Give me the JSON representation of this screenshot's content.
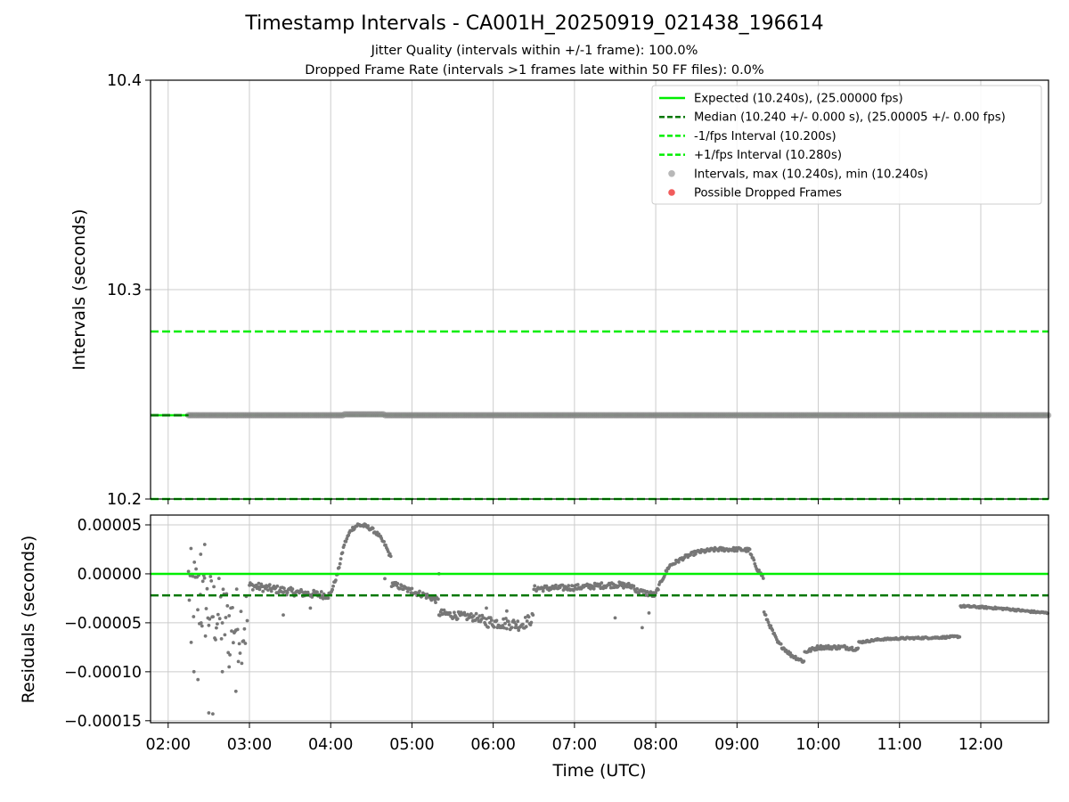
{
  "figure": {
    "title": "Timestamp Intervals - CA001H_20250919_021438_196614",
    "subtitle_jitter": "Jitter Quality (intervals within +/-1 frame): 100.0%",
    "subtitle_dropped": "Dropped Frame Rate (intervals >1 frames late within 50 FF files): 0.0%"
  },
  "colors": {
    "expected": "#00ee00",
    "median": "#007700",
    "points": "#777777",
    "dropped": "#ee3333",
    "grid": "#cccccc"
  },
  "chart_data": [
    {
      "type": "scatter",
      "panel": "intervals",
      "ylabel": "Intervals (seconds)",
      "ylim": [
        10.2,
        10.4
      ],
      "yticks": [
        "10.2",
        "10.3",
        "10.4"
      ],
      "xlim": [
        "01:47",
        "12:50"
      ],
      "grid": true,
      "legend_position": "top-right",
      "lines": [
        {
          "name": "Expected (10.240s), (25.00000 fps)",
          "y": 10.24,
          "style": "solid"
        },
        {
          "name": "Median (10.240 +/- 0.000 s), (25.00005 +/- 0.00 fps)",
          "y": 10.24,
          "style": "dashed"
        },
        {
          "name": "-1/fps Interval (10.200s)",
          "y": 10.2,
          "style": "dashed"
        },
        {
          "name": "+1/fps Interval (10.280s)",
          "y": 10.28,
          "style": "dashed"
        }
      ],
      "series": [
        {
          "name": "Intervals, max (10.240s), min (10.240s)",
          "x_range": [
            "02:15",
            "12:50"
          ],
          "y": 10.24
        },
        {
          "name": "Possible Dropped Frames",
          "points": []
        }
      ]
    },
    {
      "type": "scatter",
      "panel": "residuals",
      "xlabel": "Time (UTC)",
      "ylabel": "Residuals (seconds)",
      "ylim": [
        -0.000152,
        6e-05
      ],
      "yticks": [
        "0.00005",
        "0.00000",
        "−0.00005",
        "−0.00010",
        "−0.00015"
      ],
      "xticks": [
        "02:00",
        "03:00",
        "04:00",
        "05:00",
        "06:00",
        "07:00",
        "08:00",
        "09:00",
        "10:00",
        "11:00",
        "12:00"
      ],
      "grid": true,
      "lines": [
        {
          "name": "Expected",
          "y": 0.0,
          "style": "solid"
        },
        {
          "name": "Median",
          "y": -2.2e-05,
          "style": "dashed"
        }
      ],
      "series": [
        {
          "name": "Residuals",
          "segments": [
            {
              "x": [
                "02:15",
                "02:25",
                "02:35",
                "02:45",
                "02:55",
                "02:59"
              ],
              "y": [
                -1e-05,
                -3e-05,
                -4e-05,
                -5e-05,
                -5.2e-05,
                -4.5e-05
              ],
              "scatter": 4e-05
            },
            {
              "x": [
                "03:00",
                "03:20",
                "03:40",
                "04:00"
              ],
              "y": [
                -1.2e-05,
                -1.6e-05,
                -2e-05,
                -2.2e-05
              ],
              "scatter": 4e-06
            },
            {
              "x": [
                "04:00",
                "04:05",
                "04:10",
                "04:15",
                "04:20",
                "04:25",
                "04:30",
                "04:35",
                "04:40",
                "04:45"
              ],
              "y": [
                -2e-05,
                0.0,
                3e-05,
                4.5e-05,
                5e-05,
                4.9e-05,
                4.6e-05,
                4e-05,
                3e-05,
                1.5e-05
              ],
              "scatter": 2e-06
            },
            {
              "x": [
                "04:45",
                "05:00",
                "05:10",
                "05:20"
              ],
              "y": [
                -1e-05,
                -1.8e-05,
                -2.2e-05,
                -2.8e-05
              ],
              "scatter": 3e-06
            },
            {
              "x": [
                "05:20",
                "05:35",
                "05:50"
              ],
              "y": [
                -4e-05,
                -4.3e-05,
                -4.5e-05
              ],
              "scatter": 4e-06
            },
            {
              "x": [
                "05:50",
                "06:05",
                "06:20",
                "06:30"
              ],
              "y": [
                -4.8e-05,
                -5e-05,
                -5.2e-05,
                -4.5e-05
              ],
              "scatter": 6e-06
            },
            {
              "x": [
                "06:30",
                "07:00",
                "07:30",
                "07:45"
              ],
              "y": [
                -1.5e-05,
                -1.4e-05,
                -1.1e-05,
                -1.3e-05
              ],
              "scatter": 3e-06
            },
            {
              "x": [
                "07:45",
                "08:00"
              ],
              "y": [
                -1.7e-05,
                -2.2e-05
              ],
              "scatter": 3e-06
            },
            {
              "x": [
                "08:00",
                "08:05",
                "08:10",
                "08:20",
                "08:30",
                "08:45",
                "09:00",
                "09:10"
              ],
              "y": [
                -2e-05,
                -5e-06,
                8e-06,
                1.6e-05,
                2.2e-05,
                2.5e-05,
                2.5e-05,
                2.4e-05
              ],
              "scatter": 2e-06
            },
            {
              "x": [
                "09:10",
                "09:15",
                "09:20"
              ],
              "y": [
                2e-05,
                5e-06,
                -5e-06
              ],
              "scatter": 2e-06
            },
            {
              "x": [
                "09:20",
                "09:30",
                "09:40",
                "09:50"
              ],
              "y": [
                -4e-05,
                -7e-05,
                -8.3e-05,
                -9e-05
              ],
              "scatter": 2e-06
            },
            {
              "x": [
                "09:50",
                "10:00",
                "10:20",
                "10:30"
              ],
              "y": [
                -8e-05,
                -7.5e-05,
                -7.5e-05,
                -7.7e-05
              ],
              "scatter": 2e-06
            },
            {
              "x": [
                "10:30",
                "10:45",
                "11:00",
                "11:30",
                "11:45"
              ],
              "y": [
                -7e-05,
                -6.7e-05,
                -6.6e-05,
                -6.5e-05,
                -6.4e-05
              ],
              "scatter": 1e-06
            },
            {
              "x": [
                "11:45",
                "12:00",
                "12:20",
                "12:40",
                "12:50"
              ],
              "y": [
                -3.3e-05,
                -3.4e-05,
                -3.6e-05,
                -3.9e-05,
                -4e-05
              ],
              "scatter": 1e-06
            }
          ],
          "outliers": [
            {
              "x": "02:17",
              "y": -7e-05
            },
            {
              "x": "02:19",
              "y": -0.0001
            },
            {
              "x": "02:22",
              "y": -0.000108
            },
            {
              "x": "02:24",
              "y": 2e-05
            },
            {
              "x": "02:27",
              "y": 3e-05
            },
            {
              "x": "02:30",
              "y": -0.000142
            },
            {
              "x": "02:33",
              "y": -0.000143
            },
            {
              "x": "02:40",
              "y": -0.0001
            },
            {
              "x": "02:45",
              "y": -9.5e-05
            },
            {
              "x": "02:50",
              "y": -0.00012
            },
            {
              "x": "03:25",
              "y": -4.2e-05
            },
            {
              "x": "03:45",
              "y": -3.5e-05
            },
            {
              "x": "04:40",
              "y": -5e-06
            },
            {
              "x": "05:00",
              "y": -1.5e-05
            },
            {
              "x": "05:20",
              "y": 0.0
            },
            {
              "x": "05:55",
              "y": -3.5e-05
            },
            {
              "x": "06:10",
              "y": -3.8e-05
            },
            {
              "x": "07:30",
              "y": -4.5e-05
            },
            {
              "x": "07:50",
              "y": -5.5e-05
            },
            {
              "x": "07:55",
              "y": -4e-05
            }
          ]
        }
      ]
    }
  ]
}
